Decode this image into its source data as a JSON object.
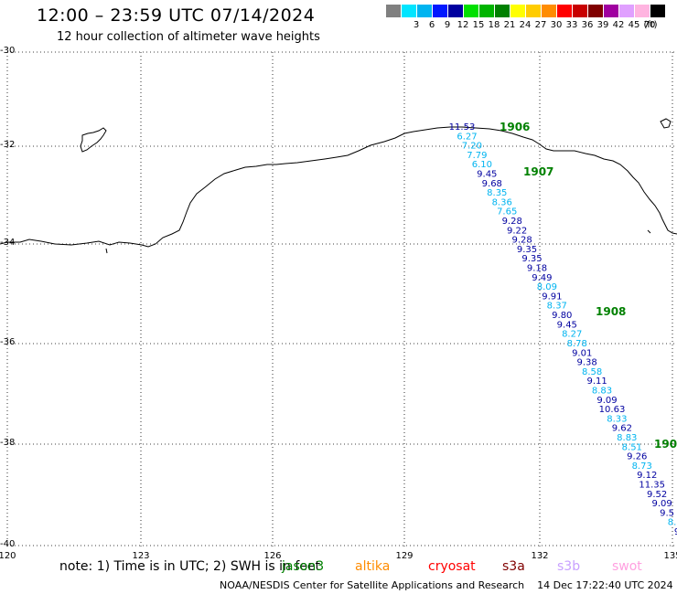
{
  "header": {
    "title": "12:00 – 23:59 UTC 07/14/2024",
    "subtitle": "12 hour collection of altimeter wave heights"
  },
  "legend": {
    "unit": "(ft)",
    "items": [
      {
        "label": "",
        "color": "#808080"
      },
      {
        "label": "3",
        "color": "#00e5ff"
      },
      {
        "label": "6",
        "color": "#00b4f0"
      },
      {
        "label": "9",
        "color": "#0018ff"
      },
      {
        "label": "12",
        "color": "#0000a0"
      },
      {
        "label": "15",
        "color": "#00e000"
      },
      {
        "label": "18",
        "color": "#00b400"
      },
      {
        "label": "21",
        "color": "#008000"
      },
      {
        "label": "24",
        "color": "#ffff00"
      },
      {
        "label": "27",
        "color": "#ffcc00"
      },
      {
        "label": "30",
        "color": "#ff8c00"
      },
      {
        "label": "33",
        "color": "#ff0000"
      },
      {
        "label": "36",
        "color": "#c80000"
      },
      {
        "label": "39",
        "color": "#800000"
      },
      {
        "label": "42",
        "color": "#a000a0"
      },
      {
        "label": "45",
        "color": "#e0a0ff"
      },
      {
        "label": "70",
        "color": "#ffb4e0"
      },
      {
        "label": "",
        "color": "#000000"
      }
    ]
  },
  "axes": {
    "lat_labels": [
      "-30",
      "-32",
      "-34",
      "-36",
      "-38",
      "-40"
    ],
    "lon_labels": [
      "120",
      "123",
      "126",
      "129",
      "132",
      "135"
    ]
  },
  "track": {
    "time_labels": [
      "1906",
      "1907",
      "1908",
      "190"
    ],
    "points": [
      {
        "v": "11.53",
        "c": "#0000a0"
      },
      {
        "v": "6.27",
        "c": "#00b4f0"
      },
      {
        "v": "7.20",
        "c": "#00b4f0"
      },
      {
        "v": "7.79",
        "c": "#00b4f0"
      },
      {
        "v": "6.10",
        "c": "#00b4f0"
      },
      {
        "v": "9.45",
        "c": "#0000a0"
      },
      {
        "v": "9.68",
        "c": "#0000a0"
      },
      {
        "v": "8.35",
        "c": "#00b4f0"
      },
      {
        "v": "8.36",
        "c": "#00b4f0"
      },
      {
        "v": "7.65",
        "c": "#00b4f0"
      },
      {
        "v": "9.28",
        "c": "#0000a0"
      },
      {
        "v": "9.22",
        "c": "#0000a0"
      },
      {
        "v": "9.28",
        "c": "#0000a0"
      },
      {
        "v": "9.35",
        "c": "#0000a0"
      },
      {
        "v": "9.35",
        "c": "#0000a0"
      },
      {
        "v": "9.18",
        "c": "#0000a0"
      },
      {
        "v": "9.49",
        "c": "#0000a0"
      },
      {
        "v": "8.09",
        "c": "#00b4f0"
      },
      {
        "v": "9.91",
        "c": "#0000a0"
      },
      {
        "v": "8.37",
        "c": "#00b4f0"
      },
      {
        "v": "9.80",
        "c": "#0000a0"
      },
      {
        "v": "9.45",
        "c": "#0000a0"
      },
      {
        "v": "8.27",
        "c": "#00b4f0"
      },
      {
        "v": "8.78",
        "c": "#00b4f0"
      },
      {
        "v": "9.01",
        "c": "#0000a0"
      },
      {
        "v": "9.38",
        "c": "#0000a0"
      },
      {
        "v": "8.58",
        "c": "#00b4f0"
      },
      {
        "v": "9.11",
        "c": "#0000a0"
      },
      {
        "v": "8.83",
        "c": "#00b4f0"
      },
      {
        "v": "9.09",
        "c": "#0000a0"
      },
      {
        "v": "10.63",
        "c": "#0000a0"
      },
      {
        "v": "8.33",
        "c": "#00b4f0"
      },
      {
        "v": "9.62",
        "c": "#0000a0"
      },
      {
        "v": "8.83",
        "c": "#00b4f0"
      },
      {
        "v": "8.51",
        "c": "#00b4f0"
      },
      {
        "v": "9.26",
        "c": "#0000a0"
      },
      {
        "v": "8.73",
        "c": "#00b4f0"
      },
      {
        "v": "9.12",
        "c": "#0000a0"
      },
      {
        "v": "11.35",
        "c": "#0000a0"
      },
      {
        "v": "9.52",
        "c": "#0000a0"
      },
      {
        "v": "9.09",
        "c": "#0000a0"
      },
      {
        "v": "9.5",
        "c": "#0000a0"
      },
      {
        "v": "8.",
        "c": "#00b4f0"
      },
      {
        "v": "9",
        "c": "#0000a0"
      }
    ]
  },
  "note": {
    "text": "note: 1) Time is in UTC; 2) SWH is in feet"
  },
  "satellites": [
    {
      "name": "jason3",
      "color": "#008000"
    },
    {
      "name": "altika",
      "color": "#ff8c00"
    },
    {
      "name": "cryosat",
      "color": "#ff0000"
    },
    {
      "name": "s3a",
      "color": "#800000"
    },
    {
      "name": "s3b",
      "color": "#c8a0ff"
    },
    {
      "name": "swot",
      "color": "#ffa0e0"
    }
  ],
  "footer": {
    "org": "NOAA/NESDIS Center for Satellite Applications and Research",
    "timestamp": "14 Dec 17:22:40 UTC 2024"
  }
}
